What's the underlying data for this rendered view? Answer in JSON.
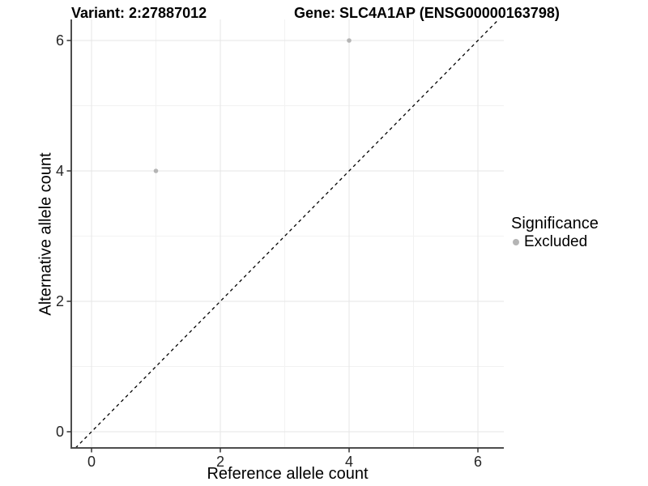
{
  "chart_data": {
    "type": "scatter",
    "title_left": "Variant: 2:27887012",
    "title_right": "Gene: SLC4A1AP (ENSG00000163798)",
    "xlabel": "Reference allele count",
    "ylabel": "Alternative allele count",
    "x_ticks": [
      0,
      2,
      4,
      6
    ],
    "y_ticks": [
      0,
      2,
      4,
      6
    ],
    "x_minor_ticks": [
      1,
      3,
      5
    ],
    "y_minor_ticks": [
      1,
      3,
      5
    ],
    "xlim": [
      -0.31,
      6.4
    ],
    "ylim": [
      -0.25,
      6.32
    ],
    "grid": "on",
    "legend_position": "right",
    "identity_line": {
      "equation": "y = x",
      "style": "dashed",
      "color": "#000000"
    },
    "series": [
      {
        "name": "Excluded",
        "color": "#b5b5b5",
        "points": [
          {
            "x": 1,
            "y": 4
          },
          {
            "x": 4,
            "y": 6
          }
        ]
      }
    ],
    "legend": {
      "title": "Significance",
      "items": [
        {
          "label": "Excluded",
          "color": "#b5b5b5"
        }
      ]
    }
  },
  "colors": {
    "background": "#ffffff",
    "grid_major": "#e5e5e5",
    "grid_minor": "#f2f2f2",
    "axis_line": "#4d4d4d",
    "tick_mark": "#333333",
    "tick_label": "#262626",
    "point": "#b5b5b5",
    "title_text": "#000000"
  }
}
